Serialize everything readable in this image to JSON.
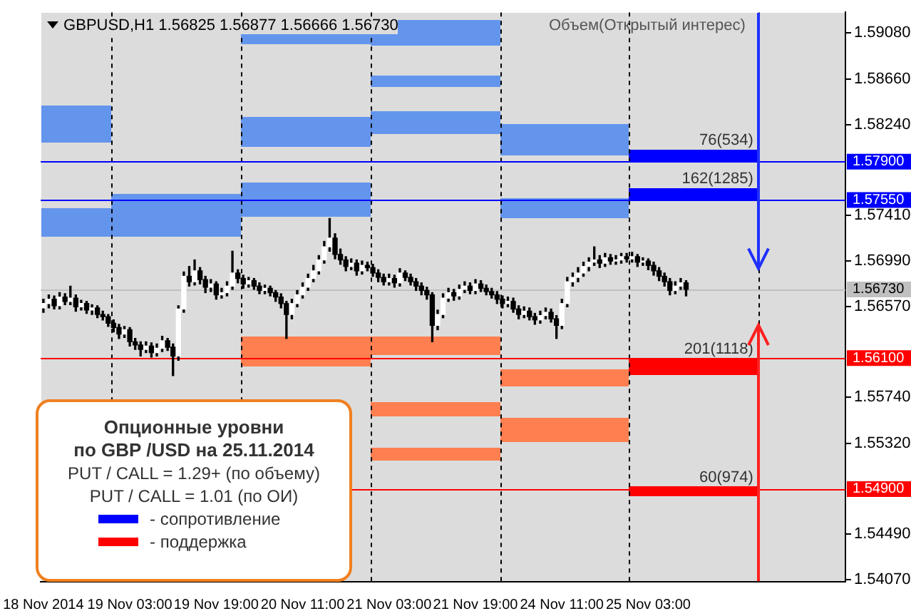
{
  "chart_data": {
    "type": "candlestick",
    "title": "GBPUSD,H1 1.56825 1.56877 1.56666 1.56730",
    "subtitle": "Объем(Открытый интерес)",
    "categories": [
      "18 Nov 2014",
      null,
      null,
      null,
      null,
      null,
      null,
      null,
      null,
      null,
      null,
      null,
      null,
      null,
      null,
      null,
      "19 Nov 03:00",
      null,
      null,
      null,
      null,
      null,
      null,
      null,
      null,
      null,
      null,
      null,
      null,
      null,
      null,
      null,
      "19 Nov 19:00",
      null,
      null,
      null,
      null,
      null,
      null,
      null,
      null,
      null,
      null,
      null,
      null,
      null,
      null,
      null,
      "20 Nov 11:00",
      null,
      null,
      null,
      null,
      null,
      null,
      null,
      null,
      null,
      null,
      null,
      null,
      null,
      null,
      null,
      "21 Nov 03:00",
      null,
      null,
      null,
      null,
      null,
      null,
      null,
      null,
      null,
      null,
      null,
      null,
      null,
      null,
      null,
      "21 Nov 19:00",
      null,
      null,
      null,
      null,
      null,
      null,
      null,
      null,
      null,
      null,
      null,
      null,
      null,
      null,
      null,
      "24 Nov 11:00",
      null,
      null,
      null,
      null,
      null,
      null,
      null,
      null,
      null,
      null,
      null,
      null,
      null,
      null,
      null,
      "25 Nov 03:00",
      null,
      null,
      null,
      null,
      null,
      null,
      null,
      null,
      null,
      null,
      null,
      null,
      null,
      null,
      null,
      null,
      null,
      null,
      null,
      null,
      null,
      null,
      null,
      null,
      null,
      null,
      null,
      null,
      null,
      null,
      null,
      null,
      null,
      null,
      null,
      null
    ],
    "ohlc": [
      [
        1.5656,
        1.5664,
        1.5652,
        1.566
      ],
      [
        1.566,
        1.5668,
        1.5656,
        1.5664
      ],
      [
        1.5664,
        1.5667,
        1.5655,
        1.5658
      ],
      [
        1.5658,
        1.567,
        1.5655,
        1.5666
      ],
      [
        1.5666,
        1.5669,
        1.5659,
        1.5662
      ],
      [
        1.5662,
        1.5676,
        1.5659,
        1.5665
      ],
      [
        1.5665,
        1.5668,
        1.5653,
        1.5657
      ],
      [
        1.5657,
        1.5663,
        1.5654,
        1.566
      ],
      [
        1.566,
        1.5662,
        1.5651,
        1.5654
      ],
      [
        1.5654,
        1.5659,
        1.565,
        1.5656
      ],
      [
        1.5656,
        1.5658,
        1.5647,
        1.565
      ],
      [
        1.565,
        1.5653,
        1.5645,
        1.5648
      ],
      [
        1.5648,
        1.565,
        1.5639,
        1.5642
      ],
      [
        1.5642,
        1.5645,
        1.5634,
        1.5638
      ],
      [
        1.5638,
        1.5641,
        1.5628,
        1.5632
      ],
      [
        1.5632,
        1.5639,
        1.5629,
        1.5636
      ],
      [
        1.5636,
        1.5638,
        1.5621,
        1.5625
      ],
      [
        1.5625,
        1.5628,
        1.5618,
        1.5622
      ],
      [
        1.5622,
        1.5625,
        1.5612,
        1.5618
      ],
      [
        1.5618,
        1.5625,
        1.5615,
        1.5621
      ],
      [
        1.5621,
        1.5624,
        1.5611,
        1.5615
      ],
      [
        1.5615,
        1.5623,
        1.5612,
        1.5619
      ],
      [
        1.5619,
        1.563,
        1.5616,
        1.5626
      ],
      [
        1.5626,
        1.5628,
        1.5617,
        1.562
      ],
      [
        1.562,
        1.5623,
        1.5594,
        1.5612
      ],
      [
        1.5612,
        1.5658,
        1.5608,
        1.5655
      ],
      [
        1.5655,
        1.5689,
        1.5652,
        1.5685
      ],
      [
        1.5685,
        1.5694,
        1.5676,
        1.568
      ],
      [
        1.568,
        1.57,
        1.5677,
        1.569
      ],
      [
        1.569,
        1.5693,
        1.5678,
        1.5682
      ],
      [
        1.5682,
        1.5685,
        1.567,
        1.5675
      ],
      [
        1.5675,
        1.5682,
        1.5671,
        1.5678
      ],
      [
        1.5678,
        1.568,
        1.5664,
        1.5668
      ],
      [
        1.5668,
        1.5674,
        1.5665,
        1.567
      ],
      [
        1.567,
        1.568,
        1.5667,
        1.5676
      ],
      [
        1.5676,
        1.5708,
        1.5673,
        1.5688
      ],
      [
        1.5688,
        1.5691,
        1.5679,
        1.5683
      ],
      [
        1.5683,
        1.5686,
        1.5674,
        1.5678
      ],
      [
        1.5678,
        1.5684,
        1.5675,
        1.5681
      ],
      [
        1.5681,
        1.5683,
        1.5673,
        1.5676
      ],
      [
        1.5676,
        1.5679,
        1.5669,
        1.5672
      ],
      [
        1.5672,
        1.5677,
        1.5669,
        1.5674
      ],
      [
        1.5674,
        1.5676,
        1.5667,
        1.567
      ],
      [
        1.567,
        1.5672,
        1.5662,
        1.5666
      ],
      [
        1.5666,
        1.5669,
        1.5656,
        1.566
      ],
      [
        1.566,
        1.5662,
        1.5628,
        1.565
      ],
      [
        1.565,
        1.5664,
        1.5646,
        1.566
      ],
      [
        1.566,
        1.5672,
        1.5657,
        1.5668
      ],
      [
        1.5668,
        1.5679,
        1.5665,
        1.5675
      ],
      [
        1.5675,
        1.5687,
        1.5672,
        1.5683
      ],
      [
        1.5683,
        1.5695,
        1.568,
        1.569
      ],
      [
        1.569,
        1.5704,
        1.5687,
        1.57
      ],
      [
        1.57,
        1.5717,
        1.5697,
        1.5712
      ],
      [
        1.5712,
        1.5738,
        1.5708,
        1.572
      ],
      [
        1.572,
        1.5724,
        1.5701,
        1.5705
      ],
      [
        1.5705,
        1.571,
        1.5696,
        1.57
      ],
      [
        1.57,
        1.5703,
        1.569,
        1.5694
      ],
      [
        1.5694,
        1.5701,
        1.5691,
        1.5697
      ],
      [
        1.5697,
        1.57,
        1.5686,
        1.569
      ],
      [
        1.569,
        1.5699,
        1.5687,
        1.5695
      ],
      [
        1.5695,
        1.5698,
        1.569,
        1.5693
      ],
      [
        1.5693,
        1.5696,
        1.5685,
        1.5688
      ],
      [
        1.5688,
        1.5691,
        1.568,
        1.5684
      ],
      [
        1.5684,
        1.5687,
        1.5677,
        1.568
      ],
      [
        1.568,
        1.5687,
        1.5677,
        1.5683
      ],
      [
        1.5683,
        1.5686,
        1.5675,
        1.5679
      ],
      [
        1.5679,
        1.5692,
        1.5676,
        1.5688
      ],
      [
        1.5688,
        1.569,
        1.5681,
        1.5684
      ],
      [
        1.5684,
        1.5687,
        1.5677,
        1.568
      ],
      [
        1.568,
        1.5683,
        1.5672,
        1.5676
      ],
      [
        1.5676,
        1.5679,
        1.5668,
        1.5672
      ],
      [
        1.5672,
        1.5675,
        1.5664,
        1.5668
      ],
      [
        1.5668,
        1.567,
        1.5625,
        1.564
      ],
      [
        1.564,
        1.5654,
        1.5636,
        1.565
      ],
      [
        1.565,
        1.5669,
        1.5647,
        1.5665
      ],
      [
        1.5665,
        1.5674,
        1.5662,
        1.567
      ],
      [
        1.567,
        1.5673,
        1.5663,
        1.5667
      ],
      [
        1.5667,
        1.5677,
        1.5664,
        1.5673
      ],
      [
        1.5673,
        1.568,
        1.567,
        1.5676
      ],
      [
        1.5676,
        1.5679,
        1.5669,
        1.5672
      ],
      [
        1.5672,
        1.5682,
        1.5669,
        1.5678
      ],
      [
        1.5678,
        1.5681,
        1.5671,
        1.5674
      ],
      [
        1.5674,
        1.5677,
        1.5668,
        1.5671
      ],
      [
        1.5671,
        1.5674,
        1.5665,
        1.5668
      ],
      [
        1.5668,
        1.5671,
        1.566,
        1.5664
      ],
      [
        1.5664,
        1.5667,
        1.5656,
        1.566
      ],
      [
        1.566,
        1.5666,
        1.5657,
        1.5662
      ],
      [
        1.5662,
        1.5665,
        1.5652,
        1.5655
      ],
      [
        1.5655,
        1.5658,
        1.5646,
        1.565
      ],
      [
        1.565,
        1.5657,
        1.5647,
        1.5653
      ],
      [
        1.5653,
        1.5656,
        1.5645,
        1.5648
      ],
      [
        1.5648,
        1.5651,
        1.5641,
        1.5645
      ],
      [
        1.5645,
        1.5653,
        1.5642,
        1.5649
      ],
      [
        1.5649,
        1.5656,
        1.5646,
        1.5652
      ],
      [
        1.5652,
        1.5655,
        1.5643,
        1.5646
      ],
      [
        1.5646,
        1.5649,
        1.5628,
        1.564
      ],
      [
        1.564,
        1.5664,
        1.5637,
        1.566
      ],
      [
        1.566,
        1.5684,
        1.5657,
        1.568
      ],
      [
        1.568,
        1.5688,
        1.5676,
        1.5684
      ],
      [
        1.5684,
        1.5693,
        1.568,
        1.5688
      ],
      [
        1.5688,
        1.5698,
        1.5685,
        1.5694
      ],
      [
        1.5694,
        1.5702,
        1.569,
        1.5698
      ],
      [
        1.5698,
        1.5712,
        1.5695,
        1.57
      ],
      [
        1.57,
        1.5704,
        1.5693,
        1.5697
      ],
      [
        1.5697,
        1.5706,
        1.5694,
        1.5702
      ],
      [
        1.5702,
        1.5705,
        1.5696,
        1.5699
      ],
      [
        1.5699,
        1.5704,
        1.5696,
        1.57
      ],
      [
        1.57,
        1.5706,
        1.5697,
        1.5703
      ],
      [
        1.5703,
        1.5706,
        1.5698,
        1.5701
      ],
      [
        1.5701,
        1.5707,
        1.5698,
        1.5703
      ],
      [
        1.5703,
        1.5705,
        1.5694,
        1.5698
      ],
      [
        1.5698,
        1.5702,
        1.5695,
        1.5699
      ],
      [
        1.5699,
        1.5701,
        1.5691,
        1.5695
      ],
      [
        1.5695,
        1.5698,
        1.5686,
        1.569
      ],
      [
        1.569,
        1.5693,
        1.5681,
        1.5685
      ],
      [
        1.5685,
        1.5688,
        1.5676,
        1.568
      ],
      [
        1.568,
        1.5683,
        1.5668,
        1.5672
      ],
      [
        1.5672,
        1.568,
        1.5669,
        1.5676
      ],
      [
        1.5676,
        1.5683,
        1.5673,
        1.5679
      ],
      [
        1.5679,
        1.5681,
        1.5667,
        1.5673
      ],
      null,
      null,
      null,
      null,
      null,
      null,
      null,
      null,
      null,
      null,
      null,
      null,
      null,
      null,
      null,
      null,
      null,
      null,
      null,
      null,
      null,
      null,
      null,
      null,
      null,
      null,
      null,
      null,
      null
    ],
    "ylim": [
      1.5405,
      1.5927
    ],
    "yticks": [
      {
        "value": 1.5908,
        "label": "1.59080"
      },
      {
        "value": 1.5866,
        "label": "1.58660"
      },
      {
        "value": 1.5824,
        "label": "1.58240"
      },
      {
        "value": 1.5741,
        "label": "1.57410"
      },
      {
        "value": 1.5699,
        "label": "1.56990"
      },
      {
        "value": 1.5657,
        "label": "1.56570"
      },
      {
        "value": 1.5574,
        "label": "1.55740"
      },
      {
        "value": 1.5532,
        "label": "1.55320"
      },
      {
        "value": 1.5449,
        "label": "1.54490"
      },
      {
        "value": 1.5407,
        "label": "1.54070"
      }
    ],
    "ref_lines": [
      {
        "axis": "y",
        "value": 1.579,
        "label": "1.57900",
        "color": "#0000ff"
      },
      {
        "axis": "y",
        "value": 1.5755,
        "label": "1.57550",
        "color": "#0000ff"
      },
      {
        "axis": "y",
        "value": 1.561,
        "label": "1.56100",
        "color": "#ff0000"
      },
      {
        "axis": "y",
        "value": 1.549,
        "label": "1.54900",
        "color": "#ff0000"
      },
      {
        "axis": "y",
        "value": 1.5673,
        "label": "1.56730",
        "color": "#c0c0c0"
      }
    ],
    "annotations": [
      "Опционные уровни",
      "по GBP /USD на 25.11.2014",
      "PUT / CALL = 1.29+ (по объему)",
      "PUT / CALL = 1.01 (по ОИ)",
      "- сопротивление",
      "- поддержка",
      {
        "text": "76(534)",
        "y": 1.579
      },
      {
        "text": "162(1285)",
        "y": 1.5755
      },
      {
        "text": "201(1118)",
        "y": 1.561
      },
      {
        "text": "60(974)",
        "y": 1.549
      }
    ],
    "legend": false
  }
}
